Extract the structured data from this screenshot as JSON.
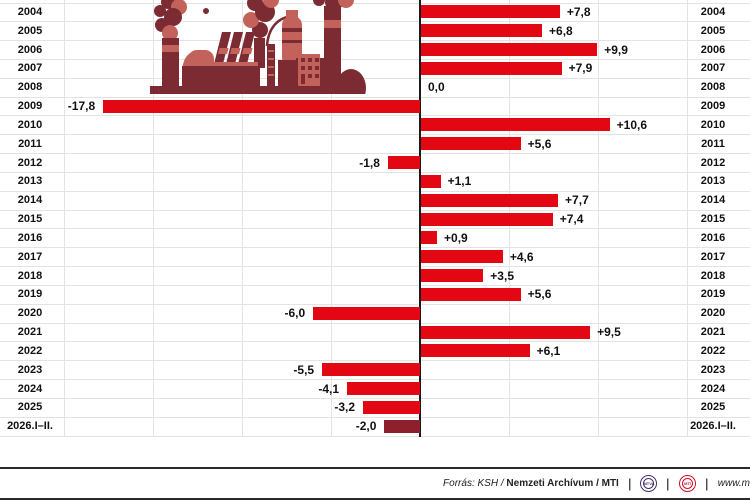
{
  "chart_data": {
    "type": "bar",
    "orientation": "horizontal",
    "categories": [
      "2004",
      "2005",
      "2006",
      "2007",
      "2008",
      "2009",
      "2010",
      "2011",
      "2012",
      "2013",
      "2014",
      "2015",
      "2016",
      "2017",
      "2018",
      "2019",
      "2020",
      "2021",
      "2022",
      "2023",
      "2024",
      "2025",
      "2026.I–II."
    ],
    "values": [
      7.8,
      6.8,
      9.9,
      7.9,
      0.0,
      -17.8,
      10.6,
      5.6,
      -1.8,
      1.1,
      7.7,
      7.4,
      0.9,
      4.6,
      3.5,
      5.6,
      -6.0,
      9.5,
      6.1,
      -5.5,
      -4.1,
      -3.2,
      -2.0
    ],
    "value_labels": [
      "+7,8",
      "+6,8",
      "+9,9",
      "+7,9",
      "0,0",
      "-17,8",
      "+10,6",
      "+5,6",
      "-1,8",
      "+1,1",
      "+7,7",
      "+7,4",
      "+0,9",
      "+4,6",
      "+3,5",
      "+5,6",
      "-6,0",
      "+9,5",
      "+6,1",
      "-5,5",
      "-4,1",
      "-3,2",
      "-2,0"
    ],
    "xlim": [
      -20,
      15
    ],
    "gridline_values": [
      -20,
      -15,
      -10,
      -5,
      5,
      10,
      15
    ],
    "grid": true,
    "legend_position": "none",
    "bar_color": "#e30613",
    "last_bar_color": "#8e1f2c",
    "axis_color": "#1a1a1a",
    "year_labels_shown_on": "both-sides"
  },
  "illustration": {
    "name": "factory-smokestacks",
    "dark_color": "#7d2b33",
    "light_color": "#c2625a"
  },
  "footer": {
    "source_prefix": "Forrás: KSH /",
    "source_bold": "Nemzeti Archívum",
    "source_suffix": "/ MTI",
    "separator": "|",
    "logo_mtva_text": "MTVA",
    "logo_mti_text": "MTI",
    "logo_mtva_color": "#43306b",
    "logo_mti_color": "#d2112b",
    "url": "www.m"
  }
}
